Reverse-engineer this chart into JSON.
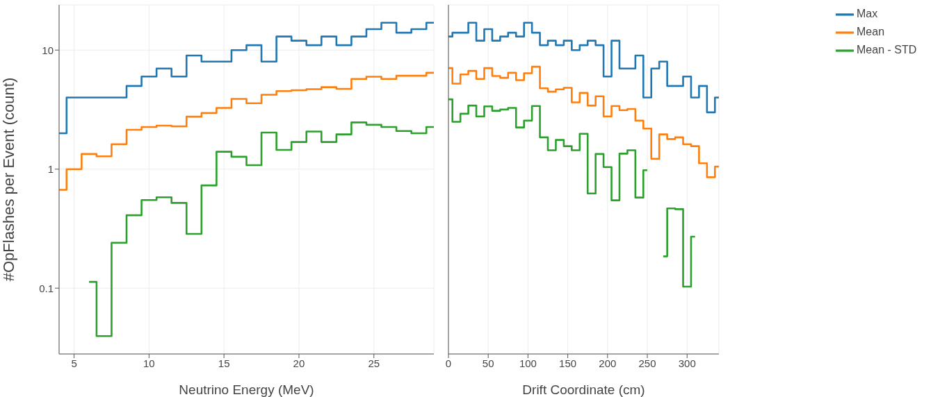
{
  "chart_data": [
    {
      "type": "step",
      "xlabel": "Neutrino Energy (MeV)",
      "ylabel": "#OpFlashes per Event (count)",
      "x": [
        4,
        5,
        6,
        7,
        8,
        9,
        10,
        11,
        12,
        13,
        14,
        15,
        16,
        17,
        18,
        19,
        20,
        21,
        22,
        23,
        24,
        25,
        26,
        27,
        28,
        29
      ],
      "xlim": [
        4,
        29
      ],
      "xticks": [
        5,
        10,
        15,
        20,
        25
      ],
      "ylim": [
        0.028,
        24
      ],
      "yticks": [
        0.1,
        1,
        10
      ],
      "log": true,
      "grid": true,
      "marker": "none",
      "line_style": "solid",
      "series": [
        {
          "color": "#1f77b4",
          "values": [
            2,
            4,
            4,
            4,
            4,
            5,
            6,
            7,
            6,
            9,
            8,
            8,
            10,
            11,
            8,
            13,
            12,
            11,
            13,
            11,
            13,
            15,
            17,
            14,
            15,
            17
          ]
        },
        {
          "color": "#ff7f0e",
          "values": [
            0.67,
            1.0,
            1.34,
            1.28,
            1.62,
            2.14,
            2.26,
            2.32,
            2.29,
            2.76,
            2.96,
            3.27,
            3.89,
            3.58,
            4.22,
            4.53,
            4.6,
            4.7,
            4.88,
            4.73,
            5.72,
            5.98,
            5.72,
            6.09,
            6.09,
            6.45
          ]
        },
        {
          "color": "#2ca02c",
          "values": [
            null,
            null,
            0.113,
            0.0396,
            0.241,
            0.41,
            0.55,
            0.58,
            0.52,
            0.286,
            0.73,
            1.4,
            1.27,
            1.08,
            2.03,
            1.45,
            1.69,
            2.07,
            1.69,
            1.96,
            2.47,
            2.36,
            2.26,
            2.09,
            2.0,
            2.26
          ]
        }
      ]
    },
    {
      "type": "step",
      "xlabel": "Drift Coordinate (cm)",
      "x": [
        0,
        10,
        20,
        30,
        40,
        50,
        60,
        70,
        80,
        90,
        100,
        110,
        120,
        130,
        140,
        150,
        160,
        170,
        180,
        190,
        200,
        210,
        220,
        230,
        240,
        250,
        260,
        270,
        280,
        290,
        300,
        310,
        320,
        330,
        340
      ],
      "xlim": [
        0,
        340
      ],
      "xticks": [
        0,
        50,
        100,
        150,
        200,
        250,
        300
      ],
      "ylim": [
        0.028,
        24
      ],
      "yticks": [
        0.1,
        1,
        10
      ],
      "log": true,
      "grid": true,
      "marker": "none",
      "line_style": "solid",
      "tick_labels": "x",
      "legend": "top right",
      "series": [
        {
          "name": "Max",
          "color": "#1f77b4",
          "values": [
            13,
            14,
            14,
            17,
            12,
            15,
            12,
            13,
            14,
            13,
            17,
            14,
            11,
            12,
            11,
            12,
            10,
            11,
            12,
            11,
            6,
            12,
            7,
            7,
            9,
            4,
            7,
            8,
            5,
            5,
            6,
            4,
            5,
            3.0,
            4
          ]
        },
        {
          "name": "Mean",
          "color": "#ff7f0e",
          "values": [
            7.06,
            5.23,
            6.25,
            6.69,
            5.72,
            7.06,
            6.06,
            5.85,
            6.45,
            5.59,
            6.4,
            7.25,
            4.78,
            4.47,
            4.68,
            4.82,
            3.64,
            4.37,
            3.42,
            4.09,
            2.77,
            3.39,
            3.13,
            3.2,
            2.56,
            2.19,
            1.22,
            1.96,
            1.79,
            1.85,
            1.62,
            1.56,
            1.12,
            0.855,
            1.05
          ]
        },
        {
          "name": "Mean - STD",
          "color": "#2ca02c",
          "values": [
            3.86,
            2.5,
            2.92,
            3.42,
            2.77,
            3.37,
            3.09,
            3.17,
            3.27,
            2.24,
            2.56,
            3.39,
            1.85,
            1.44,
            1.76,
            1.56,
            1.44,
            1.98,
            0.625,
            1.34,
            1.04,
            0.547,
            1.35,
            1.44,
            0.577,
            0.98,
            null,
            0.185,
            0.468,
            0.461,
            0.103,
            0.271,
            null,
            null,
            null
          ]
        }
      ]
    }
  ]
}
